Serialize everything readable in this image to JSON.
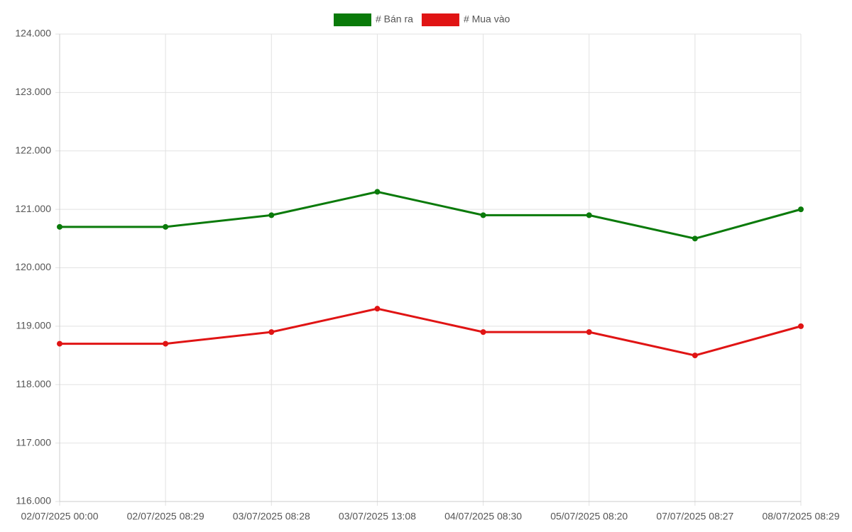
{
  "chart_data": {
    "type": "line",
    "categories": [
      "02/07/2025 00:00",
      "02/07/2025 08:29",
      "03/07/2025 08:28",
      "03/07/2025 13:08",
      "04/07/2025 08:30",
      "05/07/2025 08:20",
      "07/07/2025 08:27",
      "08/07/2025 08:29"
    ],
    "series": [
      {
        "name": "# Bán ra",
        "color": "#0a7a0a",
        "values": [
          120700,
          120700,
          120900,
          121300,
          120900,
          120900,
          120500,
          121000
        ]
      },
      {
        "name": "# Mua vào",
        "color": "#e01414",
        "values": [
          118700,
          118700,
          118900,
          119300,
          118900,
          118900,
          118500,
          119000
        ]
      }
    ],
    "ylim": [
      116000,
      124000
    ],
    "yticks": [
      {
        "value": 116000,
        "label": "116.000"
      },
      {
        "value": 117000,
        "label": "117.000"
      },
      {
        "value": 118000,
        "label": "118.000"
      },
      {
        "value": 119000,
        "label": "119.000"
      },
      {
        "value": 120000,
        "label": "120.000"
      },
      {
        "value": 121000,
        "label": "121.000"
      },
      {
        "value": 122000,
        "label": "122.000"
      },
      {
        "value": 123000,
        "label": "123.000"
      },
      {
        "value": 124000,
        "label": "124.000"
      }
    ],
    "grid": true,
    "legend": "top"
  }
}
